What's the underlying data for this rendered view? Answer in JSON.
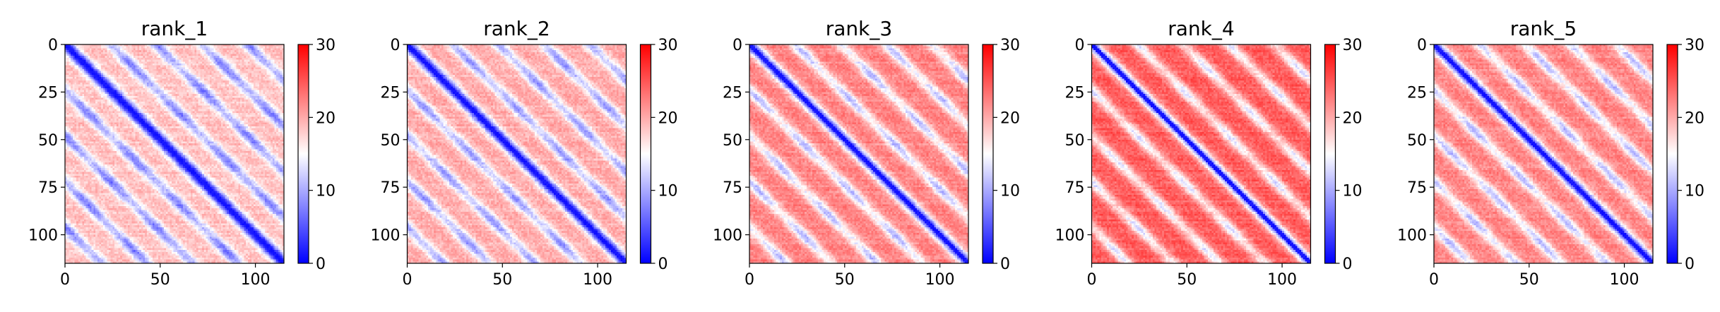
{
  "chart_data": {
    "type": "heatmap",
    "description_note": "",
    "colormap": {
      "name": "bwr",
      "low": "#0000ff",
      "mid": "#ffffff",
      "high": "#ff0000"
    },
    "panels": [
      {
        "title": "rank_1",
        "size": 115,
        "vmin": 0,
        "vmax": 30,
        "background_level": 0.62,
        "band_period": 24,
        "xticks": [
          0,
          50,
          100
        ],
        "yticks": [
          0,
          25,
          50,
          75,
          100
        ],
        "colorbar_ticks": [
          0,
          10,
          20,
          30
        ]
      },
      {
        "title": "rank_2",
        "size": 115,
        "vmin": 0,
        "vmax": 30,
        "background_level": 0.66,
        "band_period": 24,
        "xticks": [
          0,
          50,
          100
        ],
        "yticks": [
          0,
          25,
          50,
          75,
          100
        ],
        "colorbar_ticks": [
          0,
          10,
          20,
          30
        ]
      },
      {
        "title": "rank_3",
        "size": 115,
        "vmin": 0,
        "vmax": 30,
        "background_level": 0.74,
        "band_period": 24,
        "xticks": [
          0,
          50,
          100
        ],
        "yticks": [
          0,
          25,
          50,
          75,
          100
        ],
        "colorbar_ticks": [
          0,
          10,
          20,
          30
        ]
      },
      {
        "title": "rank_4",
        "size": 115,
        "vmin": 0,
        "vmax": 30,
        "background_level": 0.82,
        "band_period": 24,
        "xticks": [
          0,
          50,
          100
        ],
        "yticks": [
          0,
          25,
          50,
          75,
          100
        ],
        "colorbar_ticks": [
          0,
          10,
          20,
          30
        ]
      },
      {
        "title": "rank_5",
        "size": 115,
        "vmin": 0,
        "vmax": 30,
        "background_level": 0.74,
        "band_period": 24,
        "xticks": [
          0,
          50,
          100
        ],
        "yticks": [
          0,
          25,
          50,
          75,
          100
        ],
        "colorbar_ticks": [
          0,
          10,
          20,
          30
        ]
      }
    ]
  }
}
